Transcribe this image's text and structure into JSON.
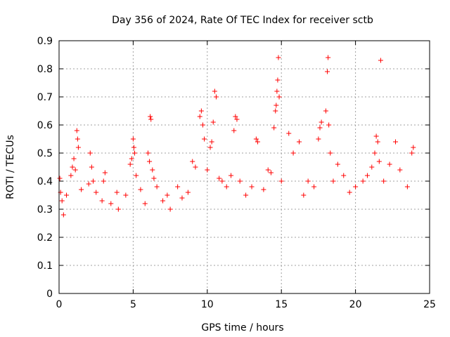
{
  "chart_data": {
    "type": "scatter",
    "title": "Day 356 of 2024, Rate Of TEC Index for receiver sctb",
    "xlabel": "GPS time / hours",
    "ylabel": "ROTI / TECUs",
    "xlim": [
      0,
      25
    ],
    "ylim": [
      0,
      0.9
    ],
    "xticks": [
      "0",
      "5",
      "10",
      "15",
      "20",
      "25"
    ],
    "yticks": [
      "0",
      "0.1",
      "0.2",
      "0.3",
      "0.4",
      "0.5",
      "0.6",
      "0.7",
      "0.8",
      "0.9"
    ],
    "grid": true,
    "marker": "plus",
    "color": "#ff0000",
    "series": [
      {
        "points": [
          [
            0.05,
            0.41
          ],
          [
            0.1,
            0.36
          ],
          [
            0.2,
            0.33
          ],
          [
            0.3,
            0.28
          ],
          [
            0.5,
            0.35
          ],
          [
            0.8,
            0.42
          ],
          [
            0.9,
            0.45
          ],
          [
            1.0,
            0.48
          ],
          [
            1.1,
            0.44
          ],
          [
            1.2,
            0.58
          ],
          [
            1.25,
            0.55
          ],
          [
            1.3,
            0.52
          ],
          [
            1.5,
            0.37
          ],
          [
            2.0,
            0.39
          ],
          [
            2.1,
            0.5
          ],
          [
            2.2,
            0.45
          ],
          [
            2.3,
            0.4
          ],
          [
            2.5,
            0.36
          ],
          [
            2.9,
            0.33
          ],
          [
            3.0,
            0.4
          ],
          [
            3.1,
            0.43
          ],
          [
            3.5,
            0.32
          ],
          [
            3.9,
            0.36
          ],
          [
            4.0,
            0.3
          ],
          [
            4.5,
            0.35
          ],
          [
            4.8,
            0.46
          ],
          [
            4.9,
            0.48
          ],
          [
            5.0,
            0.55
          ],
          [
            5.05,
            0.52
          ],
          [
            5.1,
            0.5
          ],
          [
            5.2,
            0.42
          ],
          [
            5.5,
            0.37
          ],
          [
            5.8,
            0.32
          ],
          [
            6.0,
            0.5
          ],
          [
            6.1,
            0.47
          ],
          [
            6.15,
            0.63
          ],
          [
            6.2,
            0.62
          ],
          [
            6.3,
            0.44
          ],
          [
            6.4,
            0.41
          ],
          [
            6.6,
            0.38
          ],
          [
            7.0,
            0.33
          ],
          [
            7.3,
            0.35
          ],
          [
            7.5,
            0.3
          ],
          [
            8.0,
            0.38
          ],
          [
            8.3,
            0.34
          ],
          [
            8.7,
            0.36
          ],
          [
            9.0,
            0.47
          ],
          [
            9.2,
            0.45
          ],
          [
            9.5,
            0.63
          ],
          [
            9.6,
            0.65
          ],
          [
            9.7,
            0.6
          ],
          [
            9.8,
            0.55
          ],
          [
            10.0,
            0.44
          ],
          [
            10.2,
            0.52
          ],
          [
            10.3,
            0.54
          ],
          [
            10.4,
            0.61
          ],
          [
            10.5,
            0.72
          ],
          [
            10.6,
            0.7
          ],
          [
            10.8,
            0.41
          ],
          [
            11.0,
            0.4
          ],
          [
            11.3,
            0.38
          ],
          [
            11.6,
            0.42
          ],
          [
            11.8,
            0.58
          ],
          [
            11.9,
            0.63
          ],
          [
            12.0,
            0.62
          ],
          [
            12.2,
            0.4
          ],
          [
            12.6,
            0.35
          ],
          [
            13.0,
            0.38
          ],
          [
            13.3,
            0.55
          ],
          [
            13.4,
            0.54
          ],
          [
            13.8,
            0.37
          ],
          [
            14.1,
            0.44
          ],
          [
            14.3,
            0.43
          ],
          [
            14.5,
            0.59
          ],
          [
            14.6,
            0.65
          ],
          [
            14.65,
            0.67
          ],
          [
            14.7,
            0.72
          ],
          [
            14.75,
            0.76
          ],
          [
            14.8,
            0.84
          ],
          [
            14.85,
            0.7
          ],
          [
            15.0,
            0.4
          ],
          [
            15.5,
            0.57
          ],
          [
            15.8,
            0.5
          ],
          [
            16.2,
            0.54
          ],
          [
            16.5,
            0.35
          ],
          [
            16.8,
            0.4
          ],
          [
            17.2,
            0.38
          ],
          [
            17.5,
            0.55
          ],
          [
            17.6,
            0.59
          ],
          [
            17.7,
            0.61
          ],
          [
            18.0,
            0.65
          ],
          [
            18.1,
            0.79
          ],
          [
            18.15,
            0.84
          ],
          [
            18.2,
            0.6
          ],
          [
            18.3,
            0.5
          ],
          [
            18.5,
            0.4
          ],
          [
            18.8,
            0.46
          ],
          [
            19.2,
            0.42
          ],
          [
            19.6,
            0.36
          ],
          [
            20.0,
            0.38
          ],
          [
            20.5,
            0.4
          ],
          [
            20.8,
            0.42
          ],
          [
            21.1,
            0.45
          ],
          [
            21.3,
            0.5
          ],
          [
            21.4,
            0.56
          ],
          [
            21.5,
            0.54
          ],
          [
            21.6,
            0.47
          ],
          [
            21.7,
            0.83
          ],
          [
            21.9,
            0.4
          ],
          [
            22.3,
            0.46
          ],
          [
            22.7,
            0.54
          ],
          [
            23.0,
            0.44
          ],
          [
            23.5,
            0.38
          ],
          [
            23.8,
            0.5
          ],
          [
            23.9,
            0.52
          ]
        ]
      }
    ]
  }
}
